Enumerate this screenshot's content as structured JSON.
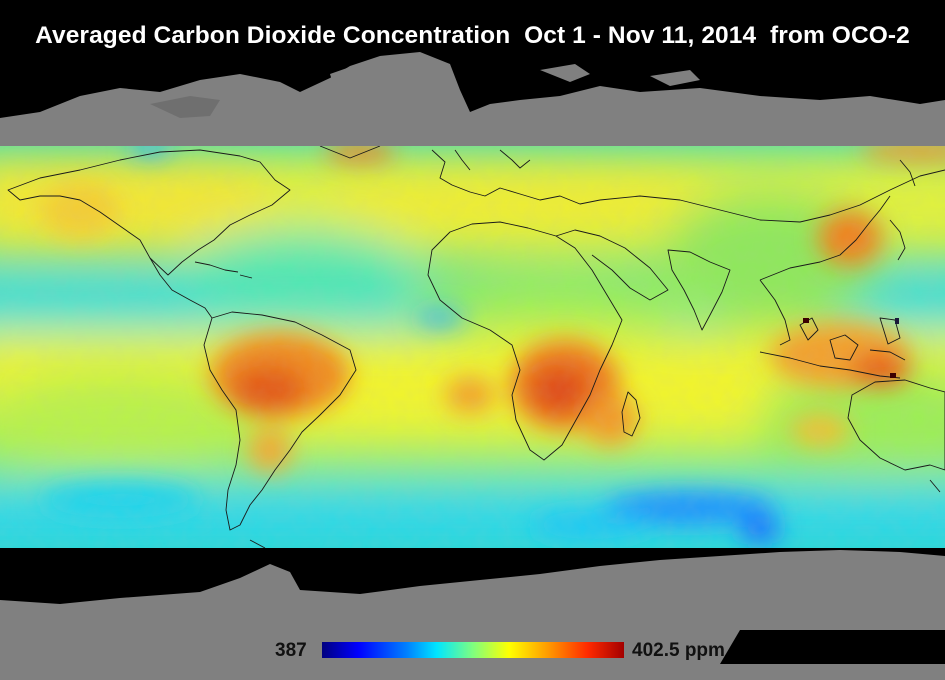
{
  "title": "Averaged Carbon Dioxide Concentration  Oct 1 - Nov 11, 2014  from OCO-2",
  "legend": {
    "min_label": "387",
    "max_label": "402.5 ppm",
    "min_value": 387,
    "max_value": 402.5,
    "unit": "ppm",
    "colors": [
      "#00007f",
      "#0000ff",
      "#0080ff",
      "#00e5ff",
      "#7fff7f",
      "#ffff00",
      "#ff9900",
      "#ff2a00",
      "#a30000"
    ]
  },
  "colors": {
    "background": "#000000",
    "land_no_data": "#808080",
    "ocean_no_data": "#000000",
    "data_base": "#29d9c8",
    "coastline": "#1a1a1a"
  }
}
